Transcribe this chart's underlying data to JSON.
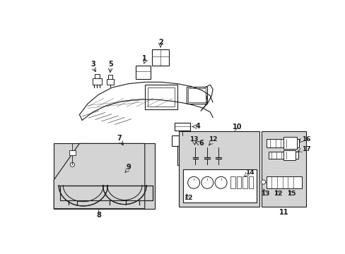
{
  "bg_color": "#ffffff",
  "line_color": "#1a1a1a",
  "gray_fill": "#d4d4d4",
  "fig_width": 4.89,
  "fig_height": 3.6,
  "dpi": 100
}
